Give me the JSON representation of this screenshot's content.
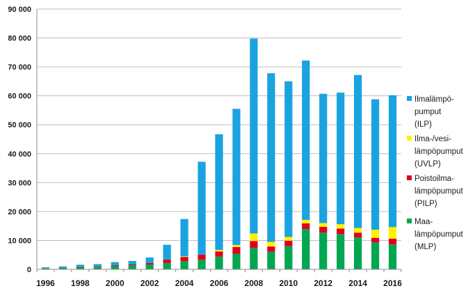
{
  "chart_data": {
    "type": "bar",
    "stacked": true,
    "categories": [
      "1996",
      "1997",
      "1998",
      "1999",
      "2000",
      "2001",
      "2002",
      "2003",
      "2004",
      "2005",
      "2006",
      "2007",
      "2008",
      "2009",
      "2010",
      "2011",
      "2012",
      "2013",
      "2014",
      "2015",
      "2016"
    ],
    "x_tick_labels": [
      "1996",
      "1998",
      "2000",
      "2002",
      "2004",
      "2006",
      "2008",
      "2010",
      "2012",
      "2014",
      "2016"
    ],
    "y_tick_labels": [
      "0",
      "10 000",
      "20 000",
      "30 000",
      "40 000",
      "50 000",
      "60 000",
      "70 000",
      "80 000",
      "90 000"
    ],
    "ylim": [
      0,
      90000
    ],
    "y_tick_step": 10000,
    "title": "",
    "xlabel": "",
    "ylabel": "",
    "grid": "horizontal",
    "legend_position": "right",
    "series": [
      {
        "key": "mlp",
        "name_lines": [
          "Maa-",
          "lämpöpumput",
          "(MLP)"
        ],
        "color": "#00a650",
        "values": [
          300,
          400,
          600,
          700,
          1100,
          1400,
          1700,
          2200,
          2800,
          3300,
          4400,
          5400,
          7400,
          6100,
          8000,
          13900,
          12700,
          12200,
          11000,
          9300,
          8600
        ]
      },
      {
        "key": "pilp",
        "name_lines": [
          "Poistoilma-",
          "lämpöpumput",
          "(PILP)"
        ],
        "color": "#e0001b",
        "values": [
          100,
          100,
          200,
          200,
          300,
          300,
          500,
          1200,
          1500,
          1800,
          1800,
          2300,
          2400,
          1800,
          1900,
          2000,
          2000,
          1900,
          1700,
          1600,
          2000
        ]
      },
      {
        "key": "uvlp",
        "name_lines": [
          "Ilma-/vesi-",
          "lämpöpumput",
          "(UVLP)"
        ],
        "color": "#fff200",
        "values": [
          0,
          0,
          0,
          0,
          0,
          0,
          0,
          0,
          200,
          0,
          500,
          700,
          2600,
          1600,
          1300,
          1200,
          1300,
          1500,
          1600,
          2800,
          4000
        ]
      },
      {
        "key": "ilp",
        "name_lines": [
          "Ilmalämpö-",
          "pumput",
          "(ILP)"
        ],
        "color": "#1aa3e0",
        "values": [
          300,
          500,
          800,
          900,
          1100,
          1200,
          1900,
          5100,
          12900,
          32100,
          40000,
          47100,
          67400,
          58300,
          53800,
          55100,
          44700,
          45500,
          52900,
          45100,
          45600
        ]
      }
    ],
    "legend_order": [
      "ilp",
      "uvlp",
      "pilp",
      "mlp"
    ]
  }
}
